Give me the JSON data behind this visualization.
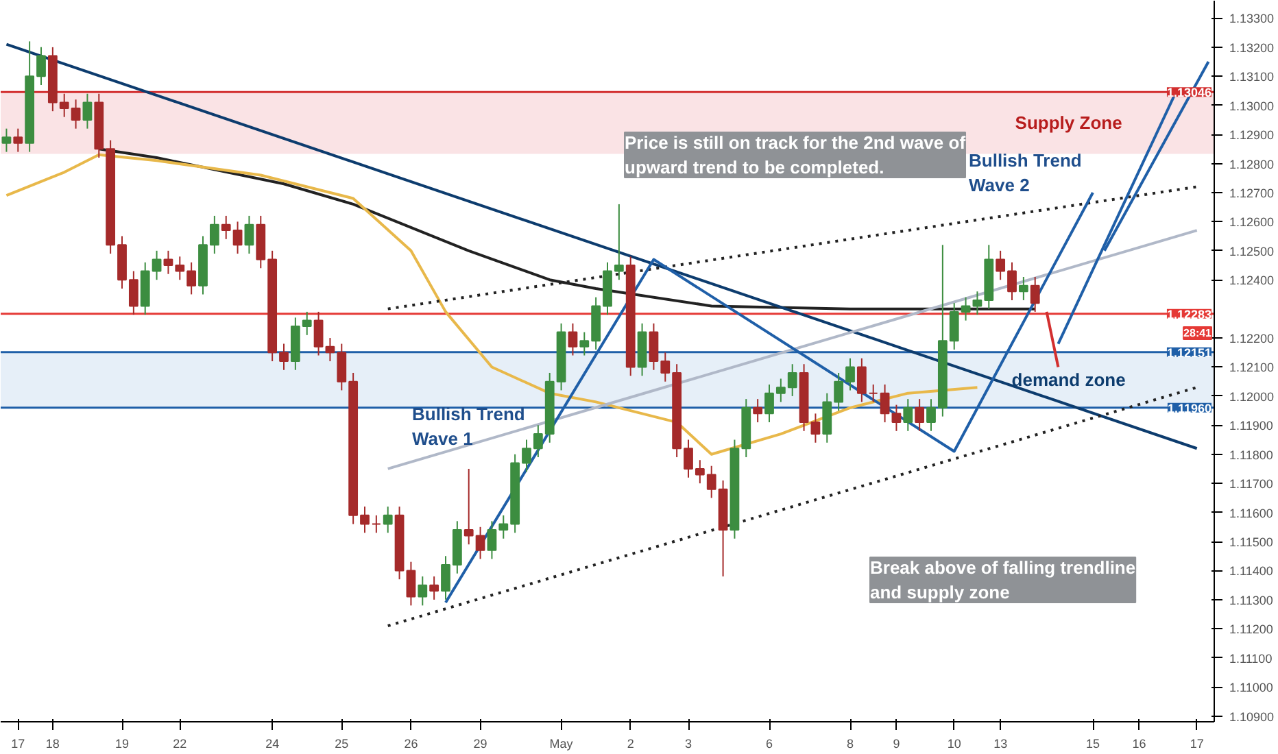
{
  "chart_data": {
    "type": "candlestick",
    "categories": [
      null,
      "17",
      null,
      null,
      "18",
      null,
      null,
      null,
      null,
      null,
      "19",
      null,
      null,
      null,
      null,
      "22",
      null,
      null,
      null,
      null,
      null,
      null,
      null,
      "24",
      null,
      null,
      null,
      null,
      null,
      "25",
      null,
      null,
      null,
      null,
      null,
      "26",
      null,
      null,
      null,
      null,
      null,
      "29",
      null,
      null,
      null,
      null,
      null,
      null,
      "May",
      null,
      null,
      null,
      null,
      null,
      "2",
      null,
      null,
      null,
      null,
      "3",
      null,
      null,
      null,
      null,
      null,
      null,
      "6",
      null,
      null,
      null,
      null,
      null,
      null,
      "8",
      null,
      null,
      null,
      "9",
      null,
      null,
      null,
      null,
      "10",
      null,
      null,
      null,
      "13",
      null,
      null,
      null,
      null,
      null,
      null,
      null,
      "15",
      null,
      null,
      null,
      "16",
      null,
      null,
      null,
      null,
      "17",
      null
    ],
    "ohlc": [
      [
        1.1287,
        1.1292,
        1.1284,
        1.1289
      ],
      [
        1.1289,
        1.1292,
        1.1284,
        1.1287
      ],
      [
        1.1287,
        1.1322,
        1.1284,
        1.131
      ],
      [
        1.131,
        1.132,
        1.1307,
        1.1317
      ],
      [
        1.1317,
        1.132,
        1.1298,
        1.1301
      ],
      [
        1.1301,
        1.1304,
        1.1296,
        1.1299
      ],
      [
        1.1299,
        1.1302,
        1.1292,
        1.1295
      ],
      [
        1.1295,
        1.1304,
        1.1292,
        1.1301
      ],
      [
        1.1301,
        1.1304,
        1.1282,
        1.1285
      ],
      [
        1.1285,
        1.1288,
        1.1249,
        1.1252
      ],
      [
        1.1252,
        1.1255,
        1.1237,
        1.124
      ],
      [
        1.124,
        1.1243,
        1.1228,
        1.1231
      ],
      [
        1.1231,
        1.1246,
        1.1228,
        1.1243
      ],
      [
        1.1243,
        1.125,
        1.124,
        1.1247
      ],
      [
        1.1247,
        1.125,
        1.1242,
        1.1245
      ],
      [
        1.1245,
        1.1248,
        1.124,
        1.1243
      ],
      [
        1.1243,
        1.1246,
        1.1235,
        1.1238
      ],
      [
        1.1238,
        1.1255,
        1.1235,
        1.1252
      ],
      [
        1.1252,
        1.1262,
        1.1249,
        1.1259
      ],
      [
        1.1259,
        1.1262,
        1.1254,
        1.1257
      ],
      [
        1.1257,
        1.126,
        1.1249,
        1.1252
      ],
      [
        1.1252,
        1.1262,
        1.1249,
        1.1259
      ],
      [
        1.1259,
        1.1262,
        1.1244,
        1.1247
      ],
      [
        1.1247,
        1.125,
        1.1212,
        1.1215
      ],
      [
        1.1215,
        1.1218,
        1.1209,
        1.1212
      ],
      [
        1.1212,
        1.1227,
        1.1209,
        1.1224
      ],
      [
        1.1224,
        1.1229,
        1.1221,
        1.1226
      ],
      [
        1.1226,
        1.1229,
        1.1214,
        1.1217
      ],
      [
        1.1217,
        1.122,
        1.1212,
        1.1215
      ],
      [
        1.1215,
        1.1218,
        1.1202,
        1.1205
      ],
      [
        1.1205,
        1.1208,
        1.1156,
        1.1159
      ],
      [
        1.1159,
        1.1162,
        1.1153,
        1.1156
      ],
      [
        1.1156,
        1.1159,
        1.1153,
        1.1156
      ],
      [
        1.1156,
        1.1162,
        1.1153,
        1.1159
      ],
      [
        1.1159,
        1.1162,
        1.1137,
        1.114
      ],
      [
        1.114,
        1.1143,
        1.1128,
        1.1131
      ],
      [
        1.1131,
        1.1138,
        1.1128,
        1.1135
      ],
      [
        1.1135,
        1.1138,
        1.113,
        1.1133
      ],
      [
        1.1133,
        1.1145,
        1.113,
        1.1142
      ],
      [
        1.1142,
        1.1157,
        1.1139,
        1.1154
      ],
      [
        1.1154,
        1.1175,
        1.1149,
        1.1152
      ],
      [
        1.1152,
        1.1155,
        1.1144,
        1.1147
      ],
      [
        1.1147,
        1.1157,
        1.1144,
        1.1154
      ],
      [
        1.1154,
        1.1159,
        1.1151,
        1.1156
      ],
      [
        1.1156,
        1.118,
        1.1153,
        1.1177
      ],
      [
        1.1177,
        1.1185,
        1.1174,
        1.1182
      ],
      [
        1.1182,
        1.119,
        1.1179,
        1.1187
      ],
      [
        1.1187,
        1.1208,
        1.1184,
        1.1205
      ],
      [
        1.1205,
        1.1225,
        1.1202,
        1.1222
      ],
      [
        1.1222,
        1.1225,
        1.1214,
        1.1217
      ],
      [
        1.1217,
        1.1222,
        1.1214,
        1.1219
      ],
      [
        1.1219,
        1.1234,
        1.1216,
        1.1231
      ],
      [
        1.1231,
        1.1246,
        1.1228,
        1.1243
      ],
      [
        1.1243,
        1.1266,
        1.124,
        1.1245
      ],
      [
        1.1245,
        1.1248,
        1.1207,
        1.121
      ],
      [
        1.121,
        1.1225,
        1.1207,
        1.1222
      ],
      [
        1.1222,
        1.1225,
        1.1209,
        1.1212
      ],
      [
        1.1212,
        1.1215,
        1.1205,
        1.1208
      ],
      [
        1.1208,
        1.1211,
        1.1179,
        1.1182
      ],
      [
        1.1182,
        1.1185,
        1.1172,
        1.1175
      ],
      [
        1.1175,
        1.1178,
        1.117,
        1.1173
      ],
      [
        1.1173,
        1.1176,
        1.1165,
        1.1168
      ],
      [
        1.1168,
        1.1171,
        1.1138,
        1.1154
      ],
      [
        1.1154,
        1.1185,
        1.1151,
        1.1182
      ],
      [
        1.1182,
        1.1199,
        1.1179,
        1.1196
      ],
      [
        1.1196,
        1.1199,
        1.1191,
        1.1194
      ],
      [
        1.1194,
        1.1204,
        1.1191,
        1.1201
      ],
      [
        1.1201,
        1.1206,
        1.1198,
        1.1203
      ],
      [
        1.1203,
        1.1211,
        1.12,
        1.1208
      ],
      [
        1.1208,
        1.1211,
        1.1188,
        1.1191
      ],
      [
        1.1191,
        1.1194,
        1.1184,
        1.1187
      ],
      [
        1.1187,
        1.1201,
        1.1184,
        1.1198
      ],
      [
        1.1198,
        1.1208,
        1.1195,
        1.1205
      ],
      [
        1.1205,
        1.1213,
        1.1202,
        1.121
      ],
      [
        1.121,
        1.1213,
        1.1198,
        1.1201
      ],
      [
        1.1201,
        1.1204,
        1.1198,
        1.1201
      ],
      [
        1.1201,
        1.1204,
        1.1191,
        1.1194
      ],
      [
        1.1194,
        1.1197,
        1.1188,
        1.1191
      ],
      [
        1.1191,
        1.1199,
        1.1188,
        1.1196
      ],
      [
        1.1196,
        1.1199,
        1.1188,
        1.1191
      ],
      [
        1.1191,
        1.1199,
        1.1188,
        1.1196
      ],
      [
        1.1196,
        1.1252,
        1.1193,
        1.1219
      ],
      [
        1.1219,
        1.1232,
        1.1216,
        1.1229
      ],
      [
        1.1229,
        1.1234,
        1.1226,
        1.1231
      ],
      [
        1.1231,
        1.1236,
        1.1228,
        1.1233
      ],
      [
        1.1233,
        1.1252,
        1.123,
        1.1247
      ],
      [
        1.1247,
        1.125,
        1.124,
        1.1243
      ],
      [
        1.1243,
        1.1246,
        1.1233,
        1.1236
      ],
      [
        1.1236,
        1.1241,
        1.1233,
        1.1238
      ],
      [
        1.1238,
        1.1241,
        1.1229,
        1.1232
      ],
      null,
      null,
      null,
      null,
      null,
      null,
      null,
      null,
      null,
      null,
      null,
      null,
      null,
      null,
      null
    ],
    "colors": [
      "#3c8d40",
      "#a52a2a",
      "#3c8d40",
      "#3c8d40",
      "#a52a2a",
      "#a52a2a",
      "#a52a2a",
      "#3c8d40",
      "#a52a2a",
      "#a52a2a",
      "#a52a2a",
      "#a52a2a",
      "#3c8d40",
      "#3c8d40",
      "#a52a2a",
      "#a52a2a",
      "#a52a2a",
      "#3c8d40",
      "#3c8d40",
      "#a52a2a",
      "#a52a2a",
      "#3c8d40",
      "#a52a2a",
      "#a52a2a",
      "#a52a2a",
      "#3c8d40",
      "#3c8d40",
      "#a52a2a",
      "#a52a2a",
      "#a52a2a",
      "#a52a2a",
      "#a52a2a",
      "#a52a2a",
      "#3c8d40",
      "#a52a2a",
      "#a52a2a",
      "#3c8d40",
      "#a52a2a",
      "#3c8d40",
      "#3c8d40",
      "#a52a2a",
      "#a52a2a",
      "#3c8d40",
      "#3c8d40",
      "#3c8d40",
      "#3c8d40",
      "#3c8d40",
      "#3c8d40",
      "#3c8d40",
      "#a52a2a",
      "#3c8d40",
      "#3c8d40",
      "#3c8d40",
      "#3c8d40",
      "#a52a2a",
      "#3c8d40",
      "#a52a2a",
      "#a52a2a",
      "#a52a2a",
      "#a52a2a",
      "#a52a2a",
      "#a52a2a",
      "#a52a2a",
      "#3c8d40",
      "#3c8d40",
      "#a52a2a",
      "#3c8d40",
      "#3c8d40",
      "#3c8d40",
      "#a52a2a",
      "#a52a2a",
      "#3c8d40",
      "#3c8d40",
      "#3c8d40",
      "#a52a2a",
      "#a52a2a",
      "#a52a2a",
      "#a52a2a",
      "#3c8d40",
      "#a52a2a",
      "#3c8d40",
      "#3c8d40",
      "#3c8d40",
      "#3c8d40",
      "#3c8d40",
      "#3c8d40",
      "#a52a2a",
      "#a52a2a",
      "#3c8d40",
      "#a52a2a",
      null,
      null,
      null,
      null,
      null,
      null,
      null,
      null,
      null,
      null,
      null,
      null,
      null,
      null,
      null
    ],
    "series": [
      {
        "type": "line",
        "color": "#222222",
        "values": [
          null,
          null,
          null,
          null,
          null,
          null,
          null,
          null,
          1.1285,
          null,
          null,
          null,
          null,
          1.1282,
          null,
          null,
          null,
          null,
          null,
          null,
          null,
          null,
          null,
          null,
          1.1273,
          null,
          null,
          null,
          null,
          null,
          1.1266,
          null,
          null,
          null,
          null,
          null,
          null,
          null,
          null,
          null,
          1.125,
          null,
          null,
          null,
          null,
          null,
          null,
          1.124,
          null,
          null,
          null,
          1.1237,
          null,
          null,
          null,
          null,
          null,
          null,
          null,
          null,
          null,
          1.1231,
          null,
          null,
          null,
          null,
          null,
          null,
          null,
          null,
          null,
          null,
          null,
          1.123,
          null,
          null,
          null,
          null,
          null,
          null,
          null,
          null,
          1.123,
          null,
          null,
          null,
          null,
          null,
          null,
          1.123,
          null,
          null,
          null,
          null,
          null,
          null,
          null,
          null,
          null,
          null,
          null,
          null,
          null,
          null,
          null
        ]
      },
      {
        "type": "line",
        "color": "#e8b84a",
        "values": [
          1.1269,
          null,
          null,
          null,
          null,
          1.1277,
          null,
          null,
          1.1283,
          null,
          null,
          null,
          null,
          1.1281,
          null,
          null,
          null,
          null,
          null,
          null,
          null,
          null,
          1.1276,
          null,
          null,
          null,
          null,
          null,
          null,
          null,
          1.1268,
          null,
          null,
          null,
          null,
          1.125,
          null,
          null,
          1.1229,
          null,
          null,
          null,
          1.121,
          null,
          null,
          null,
          null,
          1.1201,
          null,
          null,
          null,
          1.1198,
          null,
          null,
          null,
          null,
          null,
          null,
          1.1191,
          null,
          null,
          1.118,
          null,
          null,
          null,
          null,
          null,
          1.1187,
          null,
          null,
          null,
          null,
          null,
          1.1196,
          null,
          null,
          null,
          null,
          1.1201,
          null,
          null,
          null,
          null,
          null,
          1.1203,
          null,
          null,
          null,
          null,
          null,
          null,
          null,
          null,
          null,
          null,
          null,
          null,
          null,
          null,
          null,
          null,
          null,
          null,
          null,
          null
        ]
      },
      {
        "type": "line",
        "color": "#0d3c6e",
        "values": [
          1.1321,
          null,
          null,
          null,
          null,
          null,
          null,
          null,
          null,
          null,
          null,
          null,
          null,
          null,
          null,
          null,
          null,
          null,
          null,
          null,
          null,
          null,
          null,
          null,
          null,
          null,
          null,
          null,
          null,
          null,
          null,
          null,
          null,
          null,
          null,
          null,
          null,
          null,
          null,
          null,
          null,
          null,
          null,
          null,
          null,
          null,
          null,
          null,
          null,
          null,
          null,
          null,
          null,
          null,
          null,
          null,
          null,
          null,
          null,
          null,
          null,
          null,
          null,
          null,
          null,
          null,
          null,
          null,
          null,
          null,
          null,
          null,
          null,
          null,
          null,
          null,
          null,
          null,
          null,
          null,
          null,
          null,
          null,
          null,
          null,
          null,
          null,
          null,
          null,
          null,
          null,
          null,
          null,
          null,
          null,
          null,
          null,
          null,
          null,
          null,
          null,
          null,
          null,
          1.1182,
          null
        ]
      },
      {
        "type": "line",
        "color": "#222222",
        "line_style": "dotted",
        "values": [
          null,
          null,
          null,
          null,
          null,
          null,
          null,
          null,
          null,
          null,
          null,
          null,
          null,
          null,
          null,
          null,
          null,
          null,
          null,
          null,
          null,
          null,
          null,
          null,
          null,
          null,
          null,
          null,
          null,
          null,
          null,
          null,
          null,
          1.123,
          null,
          null,
          null,
          null,
          null,
          null,
          null,
          null,
          null,
          null,
          null,
          null,
          null,
          null,
          null,
          null,
          null,
          null,
          null,
          null,
          null,
          null,
          null,
          null,
          null,
          null,
          null,
          null,
          null,
          null,
          null,
          null,
          null,
          null,
          null,
          null,
          null,
          null,
          null,
          null,
          null,
          null,
          null,
          null,
          null,
          null,
          null,
          null,
          null,
          null,
          null,
          null,
          null,
          null,
          null,
          null,
          null,
          null,
          null,
          null,
          null,
          null,
          null,
          null,
          null,
          null,
          null,
          null,
          null,
          1.1272,
          null
        ]
      },
      {
        "type": "line",
        "color": "#222222",
        "line_style": "dotted",
        "values": [
          null,
          null,
          null,
          null,
          null,
          null,
          null,
          null,
          null,
          null,
          null,
          null,
          null,
          null,
          null,
          null,
          null,
          null,
          null,
          null,
          null,
          null,
          null,
          null,
          null,
          null,
          null,
          null,
          null,
          null,
          null,
          null,
          null,
          1.1121,
          null,
          null,
          null,
          null,
          null,
          null,
          null,
          null,
          null,
          null,
          null,
          null,
          null,
          null,
          null,
          null,
          null,
          null,
          null,
          null,
          null,
          null,
          null,
          null,
          null,
          null,
          null,
          null,
          null,
          null,
          null,
          null,
          null,
          null,
          null,
          null,
          null,
          null,
          null,
          null,
          null,
          null,
          null,
          null,
          null,
          null,
          null,
          null,
          null,
          null,
          null,
          null,
          null,
          null,
          null,
          null,
          null,
          null,
          null,
          null,
          null,
          null,
          null,
          null,
          null,
          null,
          null,
          null,
          null,
          1.1203,
          null
        ]
      },
      {
        "type": "line",
        "color": "#b0b8c8",
        "values": [
          null,
          null,
          null,
          null,
          null,
          null,
          null,
          null,
          null,
          null,
          null,
          null,
          null,
          null,
          null,
          null,
          null,
          null,
          null,
          null,
          null,
          null,
          null,
          null,
          null,
          null,
          null,
          null,
          null,
          null,
          null,
          null,
          null,
          1.1175,
          null,
          null,
          null,
          null,
          null,
          null,
          null,
          null,
          null,
          null,
          null,
          null,
          null,
          null,
          null,
          null,
          null,
          null,
          null,
          null,
          null,
          null,
          null,
          null,
          null,
          null,
          null,
          null,
          null,
          null,
          null,
          null,
          null,
          null,
          null,
          null,
          null,
          null,
          null,
          null,
          null,
          null,
          null,
          null,
          null,
          null,
          null,
          null,
          null,
          null,
          null,
          null,
          null,
          null,
          null,
          null,
          null,
          null,
          null,
          null,
          null,
          null,
          null,
          null,
          null,
          null,
          null,
          null,
          null,
          1.1257,
          null
        ]
      },
      {
        "type": "line",
        "color": "#1f5fa8",
        "values": [
          null,
          null,
          null,
          null,
          null,
          null,
          null,
          null,
          null,
          null,
          null,
          null,
          null,
          null,
          null,
          null,
          null,
          null,
          null,
          null,
          null,
          null,
          null,
          null,
          null,
          null,
          null,
          null,
          null,
          null,
          null,
          null,
          null,
          null,
          null,
          null,
          null,
          null,
          1.1129,
          null,
          null,
          null,
          null,
          null,
          null,
          null,
          null,
          null,
          null,
          null,
          null,
          null,
          null,
          null,
          null,
          null,
          1.1247,
          null,
          null,
          null,
          null,
          null,
          null,
          null,
          null,
          null,
          null,
          null,
          null,
          null,
          null,
          null,
          null,
          null,
          null,
          null,
          null,
          null,
          null,
          null,
          null,
          null,
          1.1181,
          null,
          null,
          null,
          null,
          null,
          null,
          null,
          null,
          null,
          null,
          null,
          1.127,
          null,
          null,
          null,
          null,
          null,
          null,
          null,
          null,
          null,
          null
        ]
      },
      {
        "type": "line",
        "color": "#1f5fa8",
        "values": [
          null,
          null,
          null,
          null,
          null,
          null,
          null,
          null,
          null,
          null,
          null,
          null,
          null,
          null,
          null,
          null,
          null,
          null,
          null,
          null,
          null,
          null,
          null,
          null,
          null,
          null,
          null,
          null,
          null,
          null,
          null,
          null,
          null,
          null,
          null,
          null,
          null,
          null,
          null,
          null,
          null,
          null,
          null,
          null,
          null,
          null,
          null,
          null,
          null,
          null,
          null,
          null,
          null,
          null,
          null,
          null,
          null,
          null,
          null,
          null,
          null,
          null,
          null,
          null,
          null,
          null,
          null,
          null,
          null,
          null,
          null,
          null,
          null,
          null,
          null,
          null,
          null,
          null,
          null,
          null,
          null,
          null,
          null,
          null,
          null,
          null,
          null,
          null,
          null,
          null,
          null,
          1.1218,
          null,
          null,
          null,
          null,
          null,
          null,
          null,
          null,
          null,
          1.1303,
          null,
          null,
          null
        ]
      },
      {
        "type": "line",
        "color": "#1f5fa8",
        "values": [
          null,
          null,
          null,
          null,
          null,
          null,
          null,
          null,
          null,
          null,
          null,
          null,
          null,
          null,
          null,
          null,
          null,
          null,
          null,
          null,
          null,
          null,
          null,
          null,
          null,
          null,
          null,
          null,
          null,
          null,
          null,
          null,
          null,
          null,
          null,
          null,
          null,
          null,
          null,
          null,
          null,
          null,
          null,
          null,
          null,
          null,
          null,
          null,
          null,
          null,
          null,
          null,
          null,
          null,
          null,
          null,
          null,
          null,
          null,
          null,
          null,
          null,
          null,
          null,
          null,
          null,
          null,
          null,
          null,
          null,
          null,
          null,
          null,
          null,
          null,
          null,
          null,
          null,
          null,
          null,
          null,
          null,
          null,
          null,
          null,
          null,
          null,
          null,
          null,
          null,
          null,
          null,
          null,
          null,
          null,
          1.125,
          null,
          null,
          null,
          null,
          null,
          null,
          null,
          null,
          1.1315
        ]
      },
      {
        "type": "line",
        "color": "#d32f2f",
        "values": [
          null,
          null,
          null,
          null,
          null,
          null,
          null,
          null,
          null,
          null,
          null,
          null,
          null,
          null,
          null,
          null,
          null,
          null,
          null,
          null,
          null,
          null,
          null,
          null,
          null,
          null,
          null,
          null,
          null,
          null,
          null,
          null,
          null,
          null,
          null,
          null,
          null,
          null,
          null,
          null,
          null,
          null,
          null,
          null,
          null,
          null,
          null,
          null,
          null,
          null,
          null,
          null,
          null,
          null,
          null,
          null,
          null,
          null,
          null,
          null,
          null,
          null,
          null,
          null,
          null,
          null,
          null,
          null,
          null,
          null,
          null,
          null,
          null,
          null,
          null,
          null,
          null,
          null,
          null,
          null,
          null,
          null,
          null,
          null,
          null,
          null,
          null,
          null,
          null,
          null,
          1.1229,
          1.121,
          null,
          null,
          null,
          null,
          null,
          null,
          null,
          null,
          null,
          null,
          null,
          null,
          null
        ]
      }
    ],
    "ylim": [
      1.1088,
      1.1336
    ],
    "yticks": [
      {
        "value": 1.109,
        "label": "1.10900"
      },
      {
        "value": 1.11,
        "label": "1.11000"
      },
      {
        "value": 1.111,
        "label": "1.11100"
      },
      {
        "value": 1.112,
        "label": "1.11200"
      },
      {
        "value": 1.113,
        "label": "1.11300"
      },
      {
        "value": 1.114,
        "label": "1.11400"
      },
      {
        "value": 1.115,
        "label": "1.11500"
      },
      {
        "value": 1.116,
        "label": "1.11600"
      },
      {
        "value": 1.117,
        "label": "1.11700"
      },
      {
        "value": 1.118,
        "label": "1.11800"
      },
      {
        "value": 1.119,
        "label": "1.11900"
      },
      {
        "value": 1.12,
        "label": "1.12000"
      },
      {
        "value": 1.121,
        "label": "1.12100"
      },
      {
        "value": 1.122,
        "label": "1.12200"
      },
      {
        "value": 1.124,
        "label": "1.12400"
      },
      {
        "value": 1.125,
        "label": "1.12500"
      },
      {
        "value": 1.126,
        "label": "1.12600"
      },
      {
        "value": 1.127,
        "label": "1.12700"
      },
      {
        "value": 1.128,
        "label": "1.12800"
      },
      {
        "value": 1.129,
        "label": "1.12900"
      },
      {
        "value": 1.13,
        "label": "1.13000"
      },
      {
        "value": 1.131,
        "label": "1.13100"
      },
      {
        "value": 1.132,
        "label": "1.13200"
      },
      {
        "value": 1.133,
        "label": "1.13300"
      }
    ],
    "ref_lines": [
      {
        "axis": "y",
        "value": 1.13046,
        "label": "1.13046",
        "color": "#d32f2f"
      },
      {
        "axis": "y",
        "value": 1.12283,
        "label": "1.12283",
        "color": "#e53935"
      },
      {
        "axis": "y",
        "value": 1.12151,
        "label": "1.12151",
        "color": "#1f5fa8"
      },
      {
        "axis": "y",
        "value": 1.1196,
        "label": "1.11960",
        "color": "#1f5fa8"
      }
    ],
    "bands": [
      {
        "axis": "y",
        "from": 1.12833,
        "to": 1.13046,
        "label": "Supply Zone",
        "color": "#f8d7da"
      },
      {
        "axis": "y",
        "from": 1.1196,
        "to": 1.12151,
        "label": "demand zone",
        "color": "#dce8f5"
      }
    ],
    "annotations": [
      "Bullish Trend\nWave 1",
      "Bullish Trend\nWave 2",
      "Price is still on track for the 2nd wave of\nupward trend to be completed.",
      "Break above of falling trendline\nand supply zone",
      "28:41"
    ],
    "grid": false
  }
}
